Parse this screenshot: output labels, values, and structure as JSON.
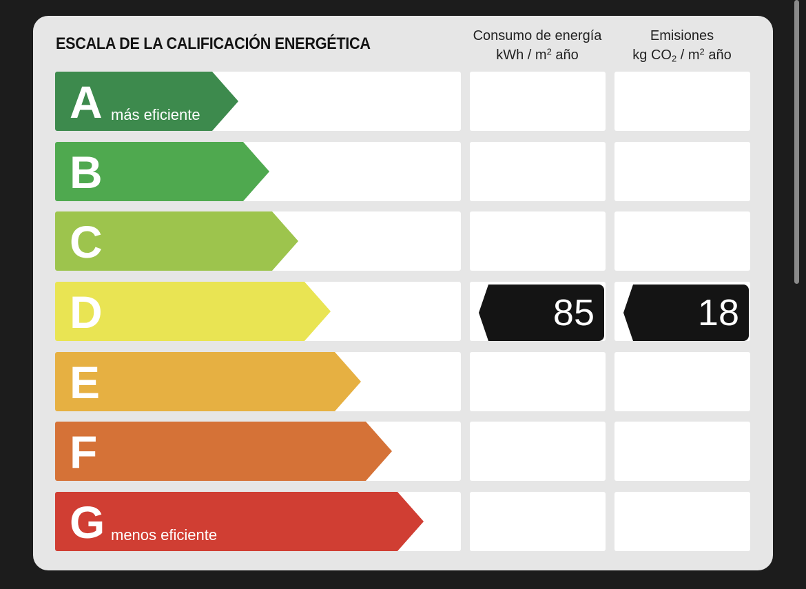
{
  "title": "ESCALA DE LA CALIFICACIÓN ENERGÉTICA",
  "columns": {
    "energy": {
      "line1": "Consumo de energía",
      "unit_pre": "kWh / m",
      "unit_sup": "2",
      "unit_post": " año"
    },
    "emissions": {
      "line1": "Emisiones",
      "unit_pre": "kg CO",
      "unit_sub": "2",
      "unit_mid": " / m",
      "unit_sup": "2",
      "unit_post": " año"
    }
  },
  "ratings": [
    {
      "letter": "A",
      "label": "más eficiente",
      "color": "#3d8a4d"
    },
    {
      "letter": "B",
      "label": "",
      "color": "#4fa94f"
    },
    {
      "letter": "C",
      "label": "",
      "color": "#9dc44d"
    },
    {
      "letter": "D",
      "label": "",
      "color": "#e9e453"
    },
    {
      "letter": "E",
      "label": "",
      "color": "#e6b042"
    },
    {
      "letter": "F",
      "label": "",
      "color": "#d57237"
    },
    {
      "letter": "G",
      "label": "menos eficiente",
      "color": "#d03e33"
    }
  ],
  "result": {
    "rating": "D",
    "energy_value": "85",
    "emissions_value": "18"
  }
}
